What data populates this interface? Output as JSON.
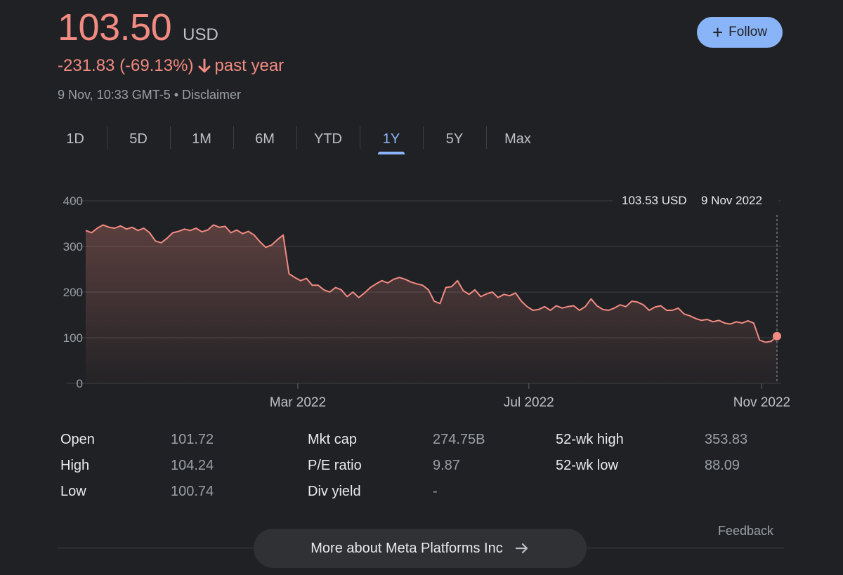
{
  "quote": {
    "price": "103.50",
    "currency": "USD",
    "change": "-231.83 (-69.13%)",
    "period": "past year",
    "timestamp": "9 Nov, 10:33 GMT-5 • Disclaimer"
  },
  "follow": {
    "label": "Follow"
  },
  "tabs": [
    {
      "label": "1D"
    },
    {
      "label": "5D"
    },
    {
      "label": "1M"
    },
    {
      "label": "6M"
    },
    {
      "label": "YTD"
    },
    {
      "label": "1Y"
    },
    {
      "label": "5Y"
    },
    {
      "label": "Max"
    }
  ],
  "active_tab": "1Y",
  "tooltip": {
    "value": "103.53 USD",
    "date": "9 Nov 2022"
  },
  "chart_data": {
    "type": "area",
    "x_tick_labels": [
      "Mar 2022",
      "Jul 2022",
      "Nov 2022"
    ],
    "y_ticks": [
      0,
      100,
      200,
      300,
      400
    ],
    "ylim": [
      0,
      400
    ],
    "x_range": [
      "9 Nov 2021",
      "9 Nov 2022"
    ],
    "values": [
      335,
      330,
      340,
      347,
      342,
      340,
      345,
      338,
      342,
      335,
      340,
      330,
      312,
      308,
      318,
      330,
      333,
      338,
      335,
      340,
      332,
      336,
      347,
      342,
      344,
      330,
      336,
      328,
      333,
      325,
      310,
      298,
      303,
      315,
      325,
      240,
      232,
      225,
      230,
      215,
      215,
      205,
      200,
      210,
      205,
      190,
      200,
      188,
      198,
      210,
      218,
      225,
      220,
      228,
      232,
      228,
      222,
      218,
      215,
      205,
      180,
      175,
      210,
      212,
      225,
      203,
      195,
      205,
      190,
      196,
      200,
      188,
      195,
      192,
      198,
      180,
      168,
      160,
      162,
      168,
      160,
      170,
      165,
      168,
      170,
      160,
      168,
      185,
      170,
      162,
      160,
      165,
      172,
      168,
      180,
      178,
      172,
      160,
      167,
      170,
      160,
      160,
      165,
      152,
      148,
      142,
      138,
      140,
      135,
      138,
      132,
      130,
      135,
      132,
      137,
      132,
      95,
      90,
      92,
      103.53
    ],
    "colors": {
      "line": "#f28b82",
      "fill": "#f28b82",
      "grid": "#3c4043"
    }
  },
  "stats": [
    [
      {
        "label": "Open",
        "value": "101.72"
      },
      {
        "label": "High",
        "value": "104.24"
      },
      {
        "label": "Low",
        "value": "100.74"
      }
    ],
    [
      {
        "label": "Mkt cap",
        "value": "274.75B"
      },
      {
        "label": "P/E ratio",
        "value": "9.87"
      },
      {
        "label": "Div yield",
        "value": "-"
      }
    ],
    [
      {
        "label": "52-wk high",
        "value": "353.83"
      },
      {
        "label": "52-wk low",
        "value": "88.09"
      }
    ]
  ],
  "feedback": "Feedback",
  "more_about": "More about Meta Platforms Inc",
  "icons": {
    "arrow": "arrow-down-icon",
    "plus": "plus-icon",
    "more": "arrow-right-icon"
  }
}
